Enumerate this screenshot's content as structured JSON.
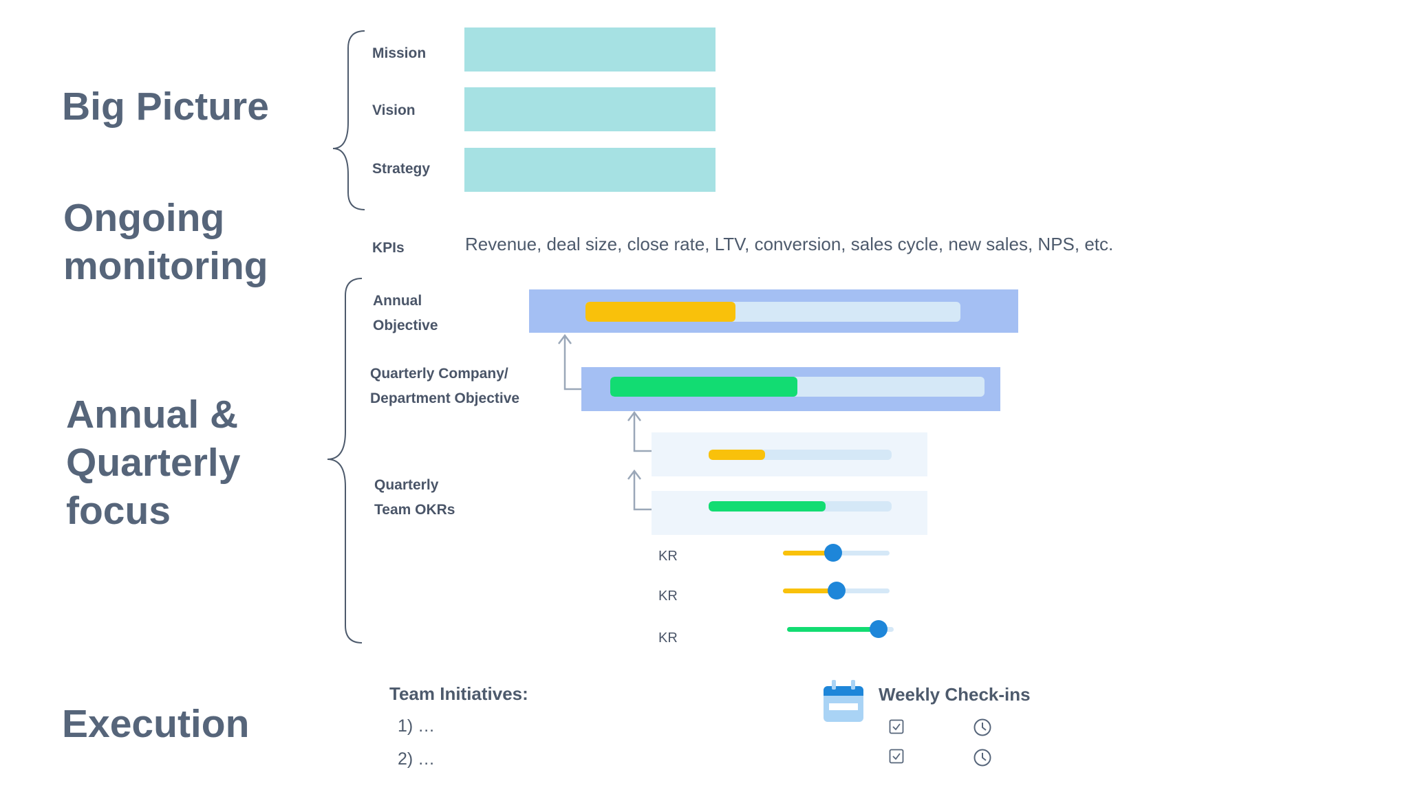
{
  "sections": {
    "big_picture": "Big Picture",
    "ongoing": "Ongoing\nmonitoring",
    "annual": "Annual &\nQuarterly\nfocus",
    "execution": "Execution"
  },
  "big_picture_items": [
    {
      "label": "Mission"
    },
    {
      "label": "Vision"
    },
    {
      "label": "Strategy"
    }
  ],
  "kpis": {
    "label": "KPIs",
    "text": "Revenue, deal size, close rate, LTV, conversion, sales cycle, new sales, NPS, etc."
  },
  "objectives": {
    "annual_label": "Annual\nObjective",
    "quarterly_label": "Quarterly Company/\nDepartment Objective",
    "team_label": "Quarterly\nTeam OKRs",
    "annual_progress": 0.4,
    "quarterly_progress": 0.5,
    "team_progress": [
      0.31,
      0.64
    ]
  },
  "key_results": [
    {
      "label": "KR",
      "progress": 0.47,
      "color": "#f9c10b"
    },
    {
      "label": "KR",
      "progress": 0.5,
      "color": "#f9c10b"
    },
    {
      "label": "KR",
      "progress": 0.86,
      "color": "#12dc72"
    }
  ],
  "execution": {
    "initiatives_title": "Team Initiatives:",
    "initiatives": [
      "1)  …",
      "2)  …"
    ],
    "checkins_title": "Weekly Check-ins"
  },
  "colors": {
    "heading": "#56657a",
    "teal_box": "#a6e1e3",
    "blue_box": "#a4bff3",
    "light_box": "#eef5fc",
    "track": "#d5e8f7",
    "yellow": "#f9c10b",
    "green": "#12dc72",
    "knob": "#1e86d9",
    "brace": "#4d5a6c",
    "arrow": "#9aa7b8"
  },
  "icons": [
    "calendar-icon",
    "checkbox-icon",
    "clock-icon",
    "arrow-up-icon"
  ]
}
